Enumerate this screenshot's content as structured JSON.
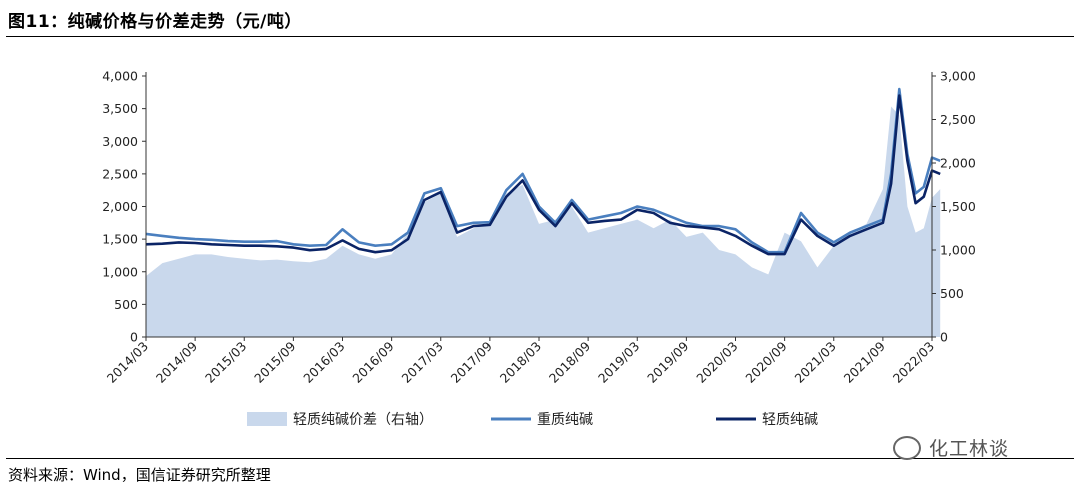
{
  "header": {
    "title": "图11：纯碱价格与价差走势（元/吨）"
  },
  "footer": {
    "source": "资料来源：Wind，国信证券研究所整理",
    "watermark": "化工林谈"
  },
  "chart_data": {
    "type": "line",
    "x_ticks": [
      "2014/03",
      "2014/09",
      "2015/03",
      "2015/09",
      "2016/03",
      "2016/09",
      "2017/03",
      "2017/09",
      "2018/03",
      "2018/09",
      "2019/03",
      "2019/09",
      "2020/03",
      "2020/09",
      "2021/03",
      "2021/09",
      "2022/03"
    ],
    "y_left": {
      "ticks": [
        "0",
        "500",
        "1,000",
        "1,500",
        "2,000",
        "2,500",
        "3,000",
        "3,500",
        "4,000"
      ],
      "ylim": [
        0,
        4000
      ]
    },
    "y_right": {
      "ticks": [
        "0",
        "500",
        "1,000",
        "1,500",
        "2,000",
        "2,500",
        "3,000"
      ],
      "ylim": [
        0,
        3000
      ]
    },
    "x": [
      "2014/03",
      "2014/05",
      "2014/07",
      "2014/09",
      "2014/11",
      "2015/01",
      "2015/03",
      "2015/05",
      "2015/07",
      "2015/09",
      "2015/11",
      "2016/01",
      "2016/03",
      "2016/05",
      "2016/07",
      "2016/09",
      "2016/11",
      "2017/01",
      "2017/03",
      "2017/05",
      "2017/07",
      "2017/09",
      "2017/11",
      "2018/01",
      "2018/03",
      "2018/05",
      "2018/07",
      "2018/09",
      "2018/11",
      "2019/01",
      "2019/03",
      "2019/05",
      "2019/07",
      "2019/09",
      "2019/11",
      "2020/01",
      "2020/03",
      "2020/05",
      "2020/07",
      "2020/09",
      "2020/11",
      "2021/01",
      "2021/03",
      "2021/05",
      "2021/07",
      "2021/09",
      "2021/10",
      "2021/11",
      "2021/12",
      "2022/01",
      "2022/02",
      "2022/03",
      "2022/04"
    ],
    "series": [
      {
        "name": "轻质纯碱价差（右轴）",
        "axis": "right",
        "kind": "area",
        "color": "#c9d8ec",
        "values": [
          700,
          850,
          900,
          950,
          950,
          920,
          900,
          880,
          890,
          870,
          860,
          900,
          1050,
          950,
          900,
          950,
          1200,
          1550,
          1650,
          1150,
          1250,
          1300,
          1650,
          1750,
          1300,
          1350,
          1500,
          1200,
          1250,
          1300,
          1350,
          1250,
          1350,
          1150,
          1200,
          1000,
          950,
          800,
          720,
          1200,
          1100,
          800,
          1050,
          1200,
          1300,
          1700,
          2650,
          2550,
          1500,
          1200,
          1250,
          1600,
          1700
        ]
      },
      {
        "name": "重质纯碱",
        "axis": "left",
        "kind": "line",
        "color": "#4a7fbf",
        "values": [
          1580,
          1550,
          1520,
          1500,
          1490,
          1470,
          1460,
          1460,
          1470,
          1420,
          1400,
          1410,
          1650,
          1450,
          1400,
          1420,
          1600,
          2200,
          2280,
          1700,
          1750,
          1760,
          2250,
          2500,
          2000,
          1750,
          2100,
          1800,
          1850,
          1900,
          2000,
          1950,
          1850,
          1750,
          1700,
          1700,
          1650,
          1450,
          1300,
          1300,
          1900,
          1600,
          1450,
          1600,
          1700,
          1800,
          2500,
          3800,
          2800,
          2200,
          2300,
          2750,
          2700
        ]
      },
      {
        "name": "轻质纯碱",
        "axis": "left",
        "kind": "line",
        "color": "#0b2466",
        "values": [
          1420,
          1430,
          1450,
          1440,
          1420,
          1410,
          1400,
          1400,
          1390,
          1370,
          1330,
          1350,
          1480,
          1350,
          1300,
          1330,
          1500,
          2100,
          2220,
          1600,
          1700,
          1720,
          2150,
          2400,
          1950,
          1700,
          2050,
          1750,
          1780,
          1800,
          1950,
          1900,
          1750,
          1700,
          1680,
          1650,
          1550,
          1400,
          1270,
          1270,
          1800,
          1550,
          1400,
          1550,
          1650,
          1750,
          2350,
          3700,
          2700,
          2050,
          2150,
          2550,
          2500
        ]
      }
    ]
  }
}
